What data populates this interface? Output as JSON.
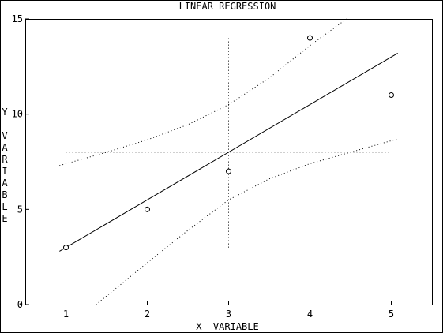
{
  "chart_data": {
    "type": "scatter",
    "title": "LINEAR REGRESSION",
    "xlabel": "X  VARIABLE",
    "ylabel": "Y VARIABLE",
    "xlim": [
      0.5,
      5.5
    ],
    "ylim": [
      0,
      15
    ],
    "x_ticks": [
      1,
      2,
      3,
      4,
      5
    ],
    "x_tick_labels": [
      "1",
      "2",
      "3",
      "4",
      "5"
    ],
    "y_ticks": [
      0,
      5,
      10,
      15
    ],
    "y_tick_labels": [
      "0",
      "5",
      "10",
      "15"
    ],
    "grid": false,
    "series": [
      {
        "type": "scatter",
        "marker": "open-circle",
        "x": [
          1,
          2,
          3,
          4,
          5
        ],
        "y": [
          3,
          5,
          7,
          14,
          11
        ]
      },
      {
        "type": "line",
        "style": "solid",
        "x": [
          0.92,
          5.08
        ],
        "y": [
          2.8,
          13.2
        ]
      },
      {
        "type": "line",
        "style": "dotted",
        "x": [
          0.92,
          1.5,
          2.0,
          2.5,
          3.0,
          3.5,
          4.0,
          4.45
        ],
        "y": [
          7.3,
          8.0,
          8.65,
          9.45,
          10.5,
          11.9,
          13.6,
          15.0
        ]
      },
      {
        "type": "line",
        "style": "dotted",
        "x": [
          1.37,
          1.6,
          2.0,
          2.5,
          3.0,
          3.5,
          4.0,
          4.5,
          5.08
        ],
        "y": [
          0.0,
          0.8,
          2.2,
          3.9,
          5.5,
          6.6,
          7.4,
          8.0,
          8.7
        ]
      },
      {
        "type": "line",
        "style": "dotted",
        "x": [
          1,
          5
        ],
        "y": [
          8,
          8
        ]
      },
      {
        "type": "line",
        "style": "dotted",
        "x": [
          3,
          3
        ],
        "y": [
          3,
          14
        ]
      }
    ]
  }
}
